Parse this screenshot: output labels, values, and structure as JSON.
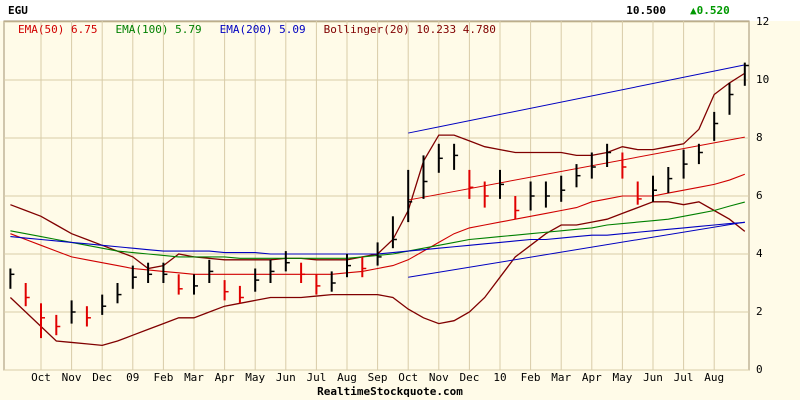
{
  "chart_data": {
    "type": "ohlc",
    "title": "EGU",
    "last_price": "10.500",
    "change": "▲0.520",
    "change_color": "#009900",
    "footer": "RealtimeStockquote.com",
    "categories": [
      null,
      null,
      "Oct",
      null,
      "Nov",
      null,
      "Dec",
      null,
      "09",
      null,
      "Feb",
      null,
      "Mar",
      null,
      "Apr",
      null,
      "May",
      null,
      "Jun",
      null,
      "Jul",
      null,
      "Aug",
      null,
      "Sep",
      null,
      "Oct",
      null,
      "Nov",
      null,
      "Dec",
      null,
      "10",
      null,
      "Feb",
      null,
      "Mar",
      null,
      "Apr",
      null,
      "May",
      null,
      "Jun",
      null,
      "Jul",
      null,
      "Aug",
      null,
      null
    ],
    "high": [
      3.5,
      3.0,
      2.3,
      1.9,
      2.4,
      2.2,
      2.6,
      3.0,
      3.6,
      3.7,
      3.7,
      3.3,
      3.3,
      3.8,
      3.1,
      2.9,
      3.5,
      3.8,
      4.1,
      3.7,
      3.3,
      3.4,
      4.0,
      3.9,
      4.4,
      5.3,
      6.9,
      7.4,
      7.8,
      7.8,
      6.9,
      6.5,
      6.9,
      6.0,
      6.5,
      6.5,
      6.7,
      7.1,
      7.5,
      7.8,
      7.5,
      6.5,
      6.7,
      7.0,
      7.6,
      7.8,
      8.9,
      9.9,
      10.6
    ],
    "low": [
      2.8,
      2.2,
      1.1,
      1.2,
      1.6,
      1.5,
      1.9,
      2.3,
      2.8,
      3.0,
      3.0,
      2.6,
      2.6,
      3.0,
      2.4,
      2.3,
      2.7,
      3.0,
      3.4,
      3.0,
      2.6,
      2.7,
      3.2,
      3.2,
      3.6,
      4.2,
      5.1,
      5.9,
      6.8,
      6.9,
      5.9,
      5.6,
      5.9,
      5.2,
      5.5,
      5.6,
      5.8,
      6.3,
      6.6,
      7.0,
      6.6,
      5.7,
      5.8,
      6.1,
      6.6,
      7.1,
      7.9,
      8.8,
      9.8
    ],
    "close": [
      3.3,
      2.5,
      1.8,
      1.5,
      2.0,
      1.8,
      2.2,
      2.6,
      3.2,
      3.3,
      3.3,
      2.8,
      2.9,
      3.4,
      2.7,
      2.5,
      3.1,
      3.4,
      3.7,
      3.3,
      2.9,
      3.0,
      3.6,
      3.5,
      3.9,
      4.5,
      5.8,
      6.5,
      7.3,
      7.4,
      6.3,
      6.0,
      6.4,
      5.5,
      6.0,
      6.0,
      6.2,
      6.7,
      7.0,
      7.5,
      7.0,
      5.9,
      6.2,
      6.6,
      7.1,
      7.5,
      8.5,
      9.5,
      10.5
    ],
    "up_color": "#000000",
    "down_color": "#e00000",
    "series": [
      {
        "name": "EMA(50) 6.75",
        "color": "#d00000",
        "values": [
          4.7,
          4.5,
          4.3,
          4.1,
          3.9,
          3.8,
          3.7,
          3.6,
          3.5,
          3.45,
          3.4,
          3.35,
          3.3,
          3.3,
          3.3,
          3.3,
          3.3,
          3.3,
          3.3,
          3.3,
          3.3,
          3.3,
          3.35,
          3.4,
          3.5,
          3.6,
          3.8,
          4.1,
          4.4,
          4.7,
          4.9,
          5.0,
          5.1,
          5.2,
          5.3,
          5.4,
          5.5,
          5.6,
          5.8,
          5.9,
          6.0,
          6.0,
          6.0,
          6.1,
          6.2,
          6.3,
          6.4,
          6.55,
          6.75
        ]
      },
      {
        "name": "EMA(100) 5.79",
        "color": "#008000",
        "values": [
          4.8,
          4.7,
          4.6,
          4.5,
          4.4,
          4.3,
          4.2,
          4.1,
          4.05,
          4.0,
          3.95,
          3.9,
          3.9,
          3.9,
          3.9,
          3.85,
          3.85,
          3.85,
          3.85,
          3.85,
          3.85,
          3.85,
          3.85,
          3.9,
          3.95,
          4.0,
          4.1,
          4.2,
          4.3,
          4.4,
          4.5,
          4.55,
          4.6,
          4.65,
          4.7,
          4.75,
          4.8,
          4.85,
          4.9,
          5.0,
          5.05,
          5.1,
          5.15,
          5.2,
          5.3,
          5.4,
          5.5,
          5.65,
          5.79
        ]
      },
      {
        "name": "EMA(200) 5.09",
        "color": "#0000c0",
        "values": [
          4.6,
          4.55,
          4.5,
          4.45,
          4.4,
          4.35,
          4.3,
          4.25,
          4.2,
          4.15,
          4.1,
          4.1,
          4.1,
          4.1,
          4.05,
          4.05,
          4.05,
          4.0,
          4.0,
          4.0,
          4.0,
          4.0,
          4.0,
          4.0,
          4.0,
          4.05,
          4.1,
          4.15,
          4.2,
          4.25,
          4.3,
          4.35,
          4.4,
          4.45,
          4.5,
          4.5,
          4.55,
          4.6,
          4.65,
          4.65,
          4.7,
          4.75,
          4.8,
          4.85,
          4.9,
          4.95,
          5.0,
          5.05,
          5.09
        ]
      }
    ],
    "bollinger": {
      "name": "Bollinger(20) 10.233 4.780",
      "color": "#800000",
      "upper": [
        5.7,
        5.5,
        5.3,
        5.0,
        4.7,
        4.5,
        4.3,
        4.1,
        3.9,
        3.5,
        3.6,
        4.0,
        3.9,
        3.85,
        3.8,
        3.8,
        3.8,
        3.8,
        3.85,
        3.85,
        3.8,
        3.8,
        3.8,
        3.9,
        4.0,
        4.5,
        5.5,
        7.2,
        8.1,
        8.1,
        7.9,
        7.7,
        7.6,
        7.5,
        7.5,
        7.5,
        7.5,
        7.4,
        7.4,
        7.5,
        7.7,
        7.6,
        7.6,
        7.7,
        7.8,
        8.3,
        9.5,
        9.9,
        10.233
      ],
      "lower": [
        2.5,
        2.0,
        1.5,
        1.0,
        0.95,
        0.9,
        0.85,
        1.0,
        1.2,
        1.4,
        1.6,
        1.8,
        1.8,
        2.0,
        2.2,
        2.3,
        2.4,
        2.5,
        2.5,
        2.5,
        2.55,
        2.6,
        2.6,
        2.6,
        2.6,
        2.5,
        2.1,
        1.8,
        1.6,
        1.7,
        2.0,
        2.5,
        3.2,
        3.9,
        4.3,
        4.7,
        5.0,
        5.0,
        5.1,
        5.2,
        5.4,
        5.6,
        5.8,
        5.8,
        5.7,
        5.8,
        5.5,
        5.2,
        4.78
      ]
    },
    "trend_lines": [
      {
        "color": "#0000c0",
        "points": [
          [
            26,
            8.17
          ],
          [
            48,
            10.52
          ]
        ]
      },
      {
        "color": "#d00000",
        "points": [
          [
            26,
            5.86
          ],
          [
            48,
            8.03
          ]
        ]
      },
      {
        "color": "#0000c0",
        "points": [
          [
            26,
            3.2
          ],
          [
            48,
            5.1
          ]
        ]
      }
    ],
    "ylim": [
      0,
      12
    ],
    "yticks": [
      0,
      2,
      4,
      6,
      8,
      10,
      12
    ],
    "grid": true
  }
}
